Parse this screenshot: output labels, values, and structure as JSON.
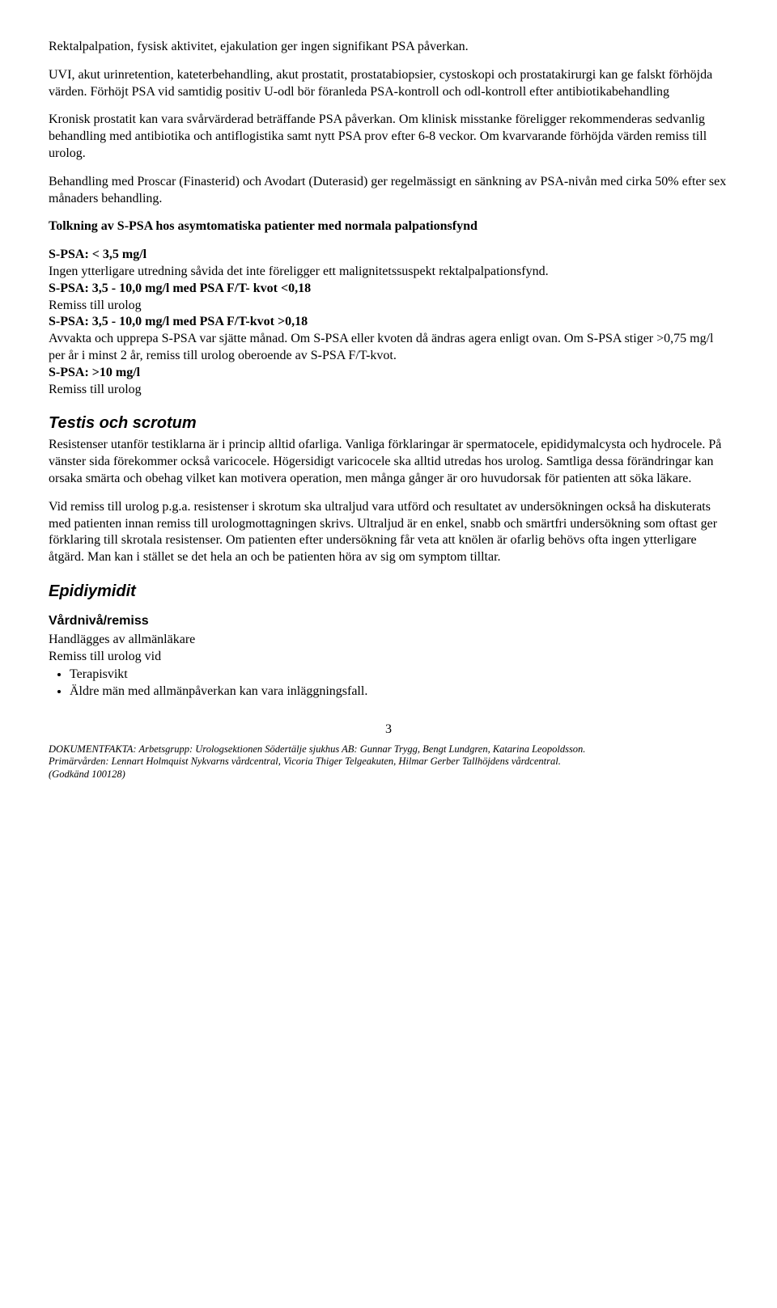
{
  "para1": "Rektalpalpation, fysisk aktivitet, ejakulation ger ingen signifikant PSA påverkan.",
  "para2": "UVI, akut urinretention, kateterbehandling, akut prostatit, prostatabiopsier, cystoskopi och prostatakirurgi kan ge falskt förhöjda värden. Förhöjt PSA vid samtidig positiv U-odl bör föranleda PSA-kontroll och odl-kontroll efter antibiotikabehandling",
  "para3": "Kronisk prostatit kan vara svårvärderad beträffande PSA påverkan. Om klinisk misstanke föreligger rekommenderas sedvanlig behandling med antibiotika och antiflogistika samt nytt PSA prov efter 6-8 veckor. Om kvarvarande förhöjda värden remiss till urolog.",
  "para4": "Behandling med Proscar (Finasterid) och Avodart (Duterasid) ger regelmässigt en sänkning av PSA-nivån med cirka 50% efter sex månaders behandling.",
  "tolkning_heading": "Tolkning av S-PSA hos asymtomatiska patienter med normala palpationsfynd",
  "spsa1_label": "S-PSA: < 3,5 mg/l",
  "spsa1_text": "Ingen ytterligare utredning såvida det inte föreligger ett malignitetssuspekt rektalpalpationsfynd.",
  "spsa2_label": "S-PSA: 3,5 - 10,0 mg/l med PSA F/T- kvot <0,18",
  "spsa2_text": "Remiss till urolog",
  "spsa3_label": "S-PSA: 3,5 - 10,0 mg/l med PSA F/T-kvot >0,18",
  "spsa3_text": "Avvakta och upprepa S-PSA var sjätte månad. Om S-PSA eller kvoten då ändras agera enligt ovan. Om S-PSA stiger >0,75 mg/l per år i minst 2 år, remiss till urolog oberoende av S-PSA F/T-kvot.",
  "spsa4_label": "S-PSA: >10 mg/l",
  "spsa4_text": "Remiss till urolog",
  "testis_heading": "Testis och scrotum",
  "testis_para1": "Resistenser utanför testiklarna är i princip alltid ofarliga. Vanliga förklaringar är spermatocele, epididymalcysta och hydrocele. På vänster sida förekommer också varicocele. Högersidigt varicocele ska alltid utredas hos urolog. Samtliga dessa förändringar kan orsaka smärta och obehag vilket kan motivera operation, men många gånger är oro huvudorsak för patienten att söka läkare.",
  "testis_para2": "Vid remiss till urolog p.g.a. resistenser i skrotum ska ultraljud vara utförd och resultatet av undersökningen också ha diskuterats med patienten innan remiss till urologmottagningen skrivs. Ultraljud är en enkel, snabb och smärtfri undersökning som oftast ger förklaring till skrotala resistenser. Om patienten efter undersökning får veta att knölen är ofarlig behövs ofta ingen ytterligare åtgärd. Man kan i stället se det hela an och be patienten höra av sig om symptom tilltar.",
  "epid_heading": "Epidiymidit",
  "vard_heading": "Vårdnivå/remiss",
  "vard_line1": "Handlägges av allmänläkare",
  "vard_line2": "Remiss till urolog vid",
  "bullet1": "Terapisvikt",
  "bullet2": "Äldre män med allmänpåverkan kan vara inläggningsfall.",
  "page_number": "3",
  "footer_line1": "DOKUMENTFAKTA: Arbetsgrupp: Urologsektionen Södertälje sjukhus AB: Gunnar Trygg, Bengt Lundgren, Katarina Leopoldsson.",
  "footer_line2": "Primärvården: Lennart Holmquist Nykvarns vårdcentral, Vicoria Thiger Telgeakuten, Hilmar Gerber Tallhöjdens vårdcentral.",
  "footer_line3": "(Godkänd 100128)"
}
